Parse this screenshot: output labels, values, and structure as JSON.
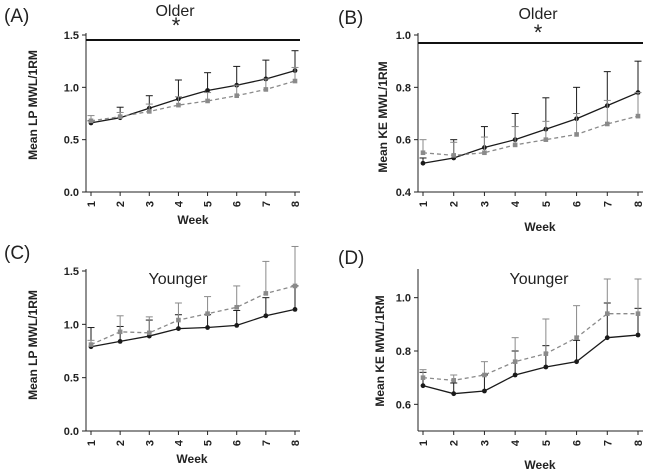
{
  "chart_data": [
    {
      "panel": "(A)",
      "type": "line",
      "title": "Older",
      "xlabel": "Week",
      "ylabel": "Mean LP MWL/1RM",
      "categories": [
        "1",
        "2",
        "3",
        "4",
        "5",
        "6",
        "7",
        "8"
      ],
      "ylim": [
        0,
        1.5
      ],
      "yticks": [
        "0.0",
        "0.5",
        "1.0",
        "1.5"
      ],
      "significance": "*",
      "series": [
        {
          "name": "solid-black",
          "color": "#1a1a1a",
          "dash": false,
          "values": [
            0.66,
            0.71,
            0.8,
            0.89,
            0.97,
            1.02,
            1.08,
            1.16
          ],
          "errors": [
            0.02,
            0.1,
            0.12,
            0.18,
            0.17,
            0.18,
            0.18,
            0.19
          ]
        },
        {
          "name": "dashed-grey",
          "color": "#8a8a8a",
          "dash": true,
          "values": [
            0.68,
            0.72,
            0.77,
            0.83,
            0.87,
            0.92,
            0.98,
            1.06
          ],
          "errors": [
            0.05,
            0.04,
            0.07,
            0.08,
            0.08,
            0.1,
            0.1,
            0.13
          ]
        }
      ]
    },
    {
      "panel": "(B)",
      "type": "line",
      "title": "Older",
      "xlabel": "Week",
      "ylabel": "Mean KE  MWL/1RM",
      "categories": [
        "1",
        "2",
        "3",
        "4",
        "5",
        "6",
        "7",
        "8"
      ],
      "ylim": [
        0.4,
        1.0
      ],
      "yticks": [
        "0.4",
        "0.6",
        "0.8",
        "1.0"
      ],
      "significance": "*",
      "series": [
        {
          "name": "solid-black",
          "color": "#1a1a1a",
          "dash": false,
          "values": [
            0.51,
            0.53,
            0.57,
            0.6,
            0.64,
            0.68,
            0.73,
            0.78
          ],
          "errors": [
            0.02,
            0.07,
            0.08,
            0.1,
            0.12,
            0.12,
            0.13,
            0.12
          ]
        },
        {
          "name": "dashed-grey",
          "color": "#8a8a8a",
          "dash": true,
          "values": [
            0.55,
            0.54,
            0.55,
            0.58,
            0.6,
            0.62,
            0.66,
            0.69
          ],
          "errors": [
            0.05,
            0.05,
            0.06,
            0.07,
            0.07,
            0.08,
            0.09,
            0.09
          ]
        }
      ]
    },
    {
      "panel": "(C)",
      "type": "line",
      "title": "Younger",
      "xlabel": "Week",
      "ylabel": "Mean LP MWL/1RM",
      "categories": [
        "1",
        "2",
        "3",
        "4",
        "5",
        "6",
        "7",
        "8"
      ],
      "ylim": [
        0,
        1.5
      ],
      "yticks": [
        "0.0",
        "0.5",
        "1.0",
        "1.5"
      ],
      "significance": "",
      "series": [
        {
          "name": "solid-black",
          "color": "#1a1a1a",
          "dash": false,
          "values": [
            0.79,
            0.84,
            0.89,
            0.96,
            0.97,
            0.99,
            1.08,
            1.14
          ],
          "errors": [
            0.18,
            0.14,
            0.15,
            0.13,
            0.12,
            0.14,
            0.17,
            0.22
          ]
        },
        {
          "name": "dashed-grey",
          "color": "#8a8a8a",
          "dash": true,
          "values": [
            0.81,
            0.93,
            0.92,
            1.04,
            1.1,
            1.16,
            1.29,
            1.36
          ],
          "errors": [
            0.04,
            0.15,
            0.15,
            0.16,
            0.16,
            0.2,
            0.3,
            0.37
          ]
        }
      ]
    },
    {
      "panel": "(D)",
      "type": "line",
      "title": "Younger",
      "xlabel": "Week",
      "ylabel": "Mean KE MWL/1RM",
      "categories": [
        "1",
        "2",
        "3",
        "4",
        "5",
        "6",
        "7",
        "8"
      ],
      "ylim": [
        0.5,
        1.1
      ],
      "yticks": [
        "0.6",
        "0.8",
        "1.0"
      ],
      "significance": "",
      "series": [
        {
          "name": "solid-black",
          "color": "#1a1a1a",
          "dash": false,
          "values": [
            0.67,
            0.64,
            0.65,
            0.71,
            0.74,
            0.76,
            0.85,
            0.86
          ],
          "errors": [
            0.05,
            0.04,
            0.06,
            0.09,
            0.08,
            0.08,
            0.13,
            0.1
          ]
        },
        {
          "name": "dashed-grey",
          "color": "#8a8a8a",
          "dash": true,
          "values": [
            0.7,
            0.69,
            0.71,
            0.76,
            0.79,
            0.85,
            0.94,
            0.94
          ],
          "errors": [
            0.03,
            0.02,
            0.05,
            0.09,
            0.13,
            0.12,
            0.13,
            0.13
          ]
        }
      ]
    }
  ]
}
